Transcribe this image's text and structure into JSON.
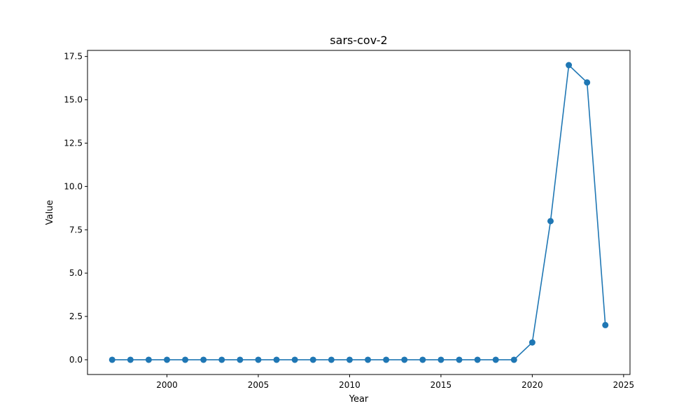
{
  "chart_data": {
    "type": "line",
    "title": "sars-cov-2",
    "xlabel": "Year",
    "ylabel": "Value",
    "xlim": [
      1995.65,
      2025.35
    ],
    "ylim": [
      -0.85,
      17.85
    ],
    "xticks": [
      2000,
      2005,
      2010,
      2015,
      2020,
      2025
    ],
    "xtick_labels": [
      "2000",
      "2005",
      "2010",
      "2015",
      "2020",
      "2025"
    ],
    "yticks": [
      0.0,
      2.5,
      5.0,
      7.5,
      10.0,
      12.5,
      15.0,
      17.5
    ],
    "ytick_labels": [
      "0.0",
      "2.5",
      "5.0",
      "7.5",
      "10.0",
      "12.5",
      "15.0",
      "17.5"
    ],
    "grid": false,
    "marker": "circle",
    "series": [
      {
        "color": "#1f77b4",
        "x": [
          1997,
          1998,
          1999,
          2000,
          2001,
          2002,
          2003,
          2004,
          2005,
          2006,
          2007,
          2008,
          2009,
          2010,
          2011,
          2012,
          2013,
          2014,
          2015,
          2016,
          2017,
          2018,
          2019,
          2020,
          2021,
          2022,
          2023,
          2024
        ],
        "y": [
          0,
          0,
          0,
          0,
          0,
          0,
          0,
          0,
          0,
          0,
          0,
          0,
          0,
          0,
          0,
          0,
          0,
          0,
          0,
          0,
          0,
          0,
          0,
          1,
          8,
          17,
          16,
          2
        ]
      }
    ]
  }
}
